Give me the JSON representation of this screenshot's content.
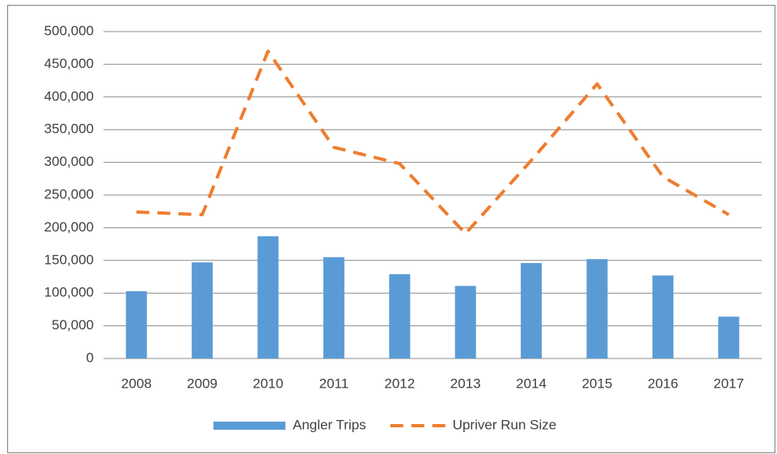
{
  "chart_data": {
    "type": "combo",
    "categories": [
      "2008",
      "2009",
      "2010",
      "2011",
      "2012",
      "2013",
      "2014",
      "2015",
      "2016",
      "2017"
    ],
    "series": [
      {
        "name": "Angler Trips",
        "type": "bar",
        "color": "#5b9bd5",
        "values": [
          103000,
          147000,
          187000,
          155000,
          129000,
          111000,
          146000,
          152000,
          127000,
          64000
        ]
      },
      {
        "name": "Upriver Run Size",
        "type": "line",
        "color": "#ed7d31",
        "dashed": true,
        "values": [
          224000,
          220000,
          470000,
          323000,
          298000,
          191000,
          303000,
          420000,
          278000,
          220000
        ]
      }
    ],
    "ylim": [
      0,
      500000
    ],
    "yticks": [
      0,
      {
        "value": 50000,
        "label": "50,000"
      },
      {
        "value": 100000,
        "label": "100,000"
      },
      {
        "value": 150000,
        "label": "150,000"
      },
      {
        "value": 200000,
        "label": "200,000"
      },
      {
        "value": 250000,
        "label": "250,000"
      },
      {
        "value": 300000,
        "label": "300,000"
      },
      {
        "value": 350000,
        "label": "350,000"
      },
      {
        "value": 400000,
        "label": "400,000"
      },
      {
        "value": 450000,
        "label": "450,000"
      },
      {
        "value": 500000,
        "label": "500,000"
      }
    ],
    "grid": true,
    "legend": "bottom"
  }
}
